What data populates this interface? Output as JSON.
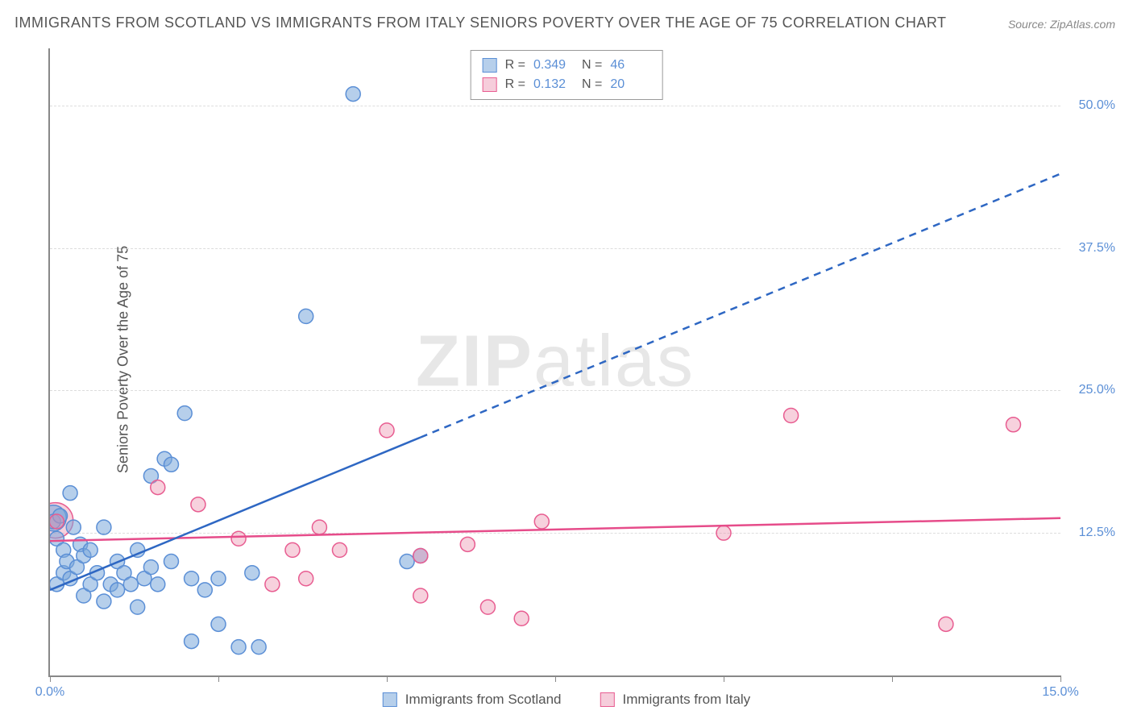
{
  "title": "IMMIGRANTS FROM SCOTLAND VS IMMIGRANTS FROM ITALY SENIORS POVERTY OVER THE AGE OF 75 CORRELATION CHART",
  "source_label": "Source: ZipAtlas.com",
  "ylabel": "Seniors Poverty Over the Age of 75",
  "watermark_bold": "ZIP",
  "watermark_rest": "atlas",
  "chart": {
    "type": "scatter",
    "xlim": [
      0,
      15
    ],
    "ylim": [
      0,
      55
    ],
    "x_tick_labels": {
      "0": "0.0%",
      "15": "15.0%"
    },
    "x_tick_marks": [
      0,
      2.5,
      5,
      7.5,
      10,
      12.5,
      15
    ],
    "y_gridlines": [
      12.5,
      25,
      37.5,
      50
    ],
    "y_tick_labels": {
      "12.5": "12.5%",
      "25": "25.0%",
      "37.5": "37.5%",
      "50": "50.0%"
    },
    "background_color": "#ffffff",
    "grid_color": "#dddddd",
    "axis_color": "#888888",
    "tick_label_color": "#5b8fd6",
    "body_text_color": "#555555"
  },
  "series": {
    "scotland": {
      "label": "Immigrants from Scotland",
      "fill": "rgba(122,168,219,0.55)",
      "stroke": "#5b8fd6",
      "line_stroke": "#2e67c3",
      "line_width": 2.5,
      "marker_r": 9,
      "r_label": "R =",
      "r_value": "0.349",
      "n_label": "N =",
      "n_value": "46",
      "trend": {
        "x1": 0,
        "y1": 7.5,
        "x2": 15,
        "y2": 44,
        "solid_to_x": 5.5
      },
      "points": [
        [
          0.05,
          13.5
        ],
        [
          0.1,
          12.0
        ],
        [
          0.1,
          8.0
        ],
        [
          0.15,
          14.0
        ],
        [
          0.2,
          11.0
        ],
        [
          0.2,
          9.0
        ],
        [
          0.25,
          10.0
        ],
        [
          0.3,
          16.0
        ],
        [
          0.3,
          8.5
        ],
        [
          0.35,
          13.0
        ],
        [
          0.4,
          9.5
        ],
        [
          0.45,
          11.5
        ],
        [
          0.5,
          10.5
        ],
        [
          0.5,
          7.0
        ],
        [
          0.6,
          8.0
        ],
        [
          0.6,
          11.0
        ],
        [
          0.7,
          9.0
        ],
        [
          0.8,
          13.0
        ],
        [
          0.8,
          6.5
        ],
        [
          0.9,
          8.0
        ],
        [
          1.0,
          10.0
        ],
        [
          1.0,
          7.5
        ],
        [
          1.1,
          9.0
        ],
        [
          1.2,
          8.0
        ],
        [
          1.3,
          11.0
        ],
        [
          1.3,
          6.0
        ],
        [
          1.4,
          8.5
        ],
        [
          1.5,
          17.5
        ],
        [
          1.5,
          9.5
        ],
        [
          1.6,
          8.0
        ],
        [
          1.7,
          19.0
        ],
        [
          1.8,
          18.5
        ],
        [
          1.8,
          10.0
        ],
        [
          2.0,
          23.0
        ],
        [
          2.1,
          8.5
        ],
        [
          2.1,
          3.0
        ],
        [
          2.3,
          7.5
        ],
        [
          2.5,
          4.5
        ],
        [
          2.5,
          8.5
        ],
        [
          2.8,
          2.5
        ],
        [
          3.0,
          9.0
        ],
        [
          3.1,
          2.5
        ],
        [
          3.8,
          31.5
        ],
        [
          4.5,
          51.0
        ],
        [
          5.3,
          10.0
        ],
        [
          5.5,
          10.5
        ]
      ],
      "big_points": [
        [
          0.05,
          13.8,
          16
        ]
      ]
    },
    "italy": {
      "label": "Immigrants from Italy",
      "fill": "rgba(235,145,175,0.42)",
      "stroke": "#e85d91",
      "line_stroke": "#e64c8a",
      "line_width": 2.5,
      "marker_r": 9,
      "r_label": "R =",
      "r_value": "0.132",
      "n_label": "N =",
      "n_value": "20",
      "trend": {
        "x1": 0,
        "y1": 11.8,
        "x2": 15,
        "y2": 13.8,
        "solid_to_x": 15
      },
      "points": [
        [
          0.1,
          13.5
        ],
        [
          1.6,
          16.5
        ],
        [
          2.2,
          15.0
        ],
        [
          2.8,
          12.0
        ],
        [
          3.3,
          8.0
        ],
        [
          3.6,
          11.0
        ],
        [
          3.8,
          8.5
        ],
        [
          4.0,
          13.0
        ],
        [
          4.3,
          11.0
        ],
        [
          5.0,
          21.5
        ],
        [
          5.5,
          7.0
        ],
        [
          5.5,
          10.5
        ],
        [
          6.2,
          11.5
        ],
        [
          6.5,
          6.0
        ],
        [
          7.0,
          5.0
        ],
        [
          7.3,
          13.5
        ],
        [
          10.0,
          12.5
        ],
        [
          11.0,
          22.8
        ],
        [
          13.3,
          4.5
        ],
        [
          14.3,
          22.0
        ]
      ],
      "big_points": [
        [
          0.08,
          13.6,
          22
        ]
      ]
    }
  }
}
